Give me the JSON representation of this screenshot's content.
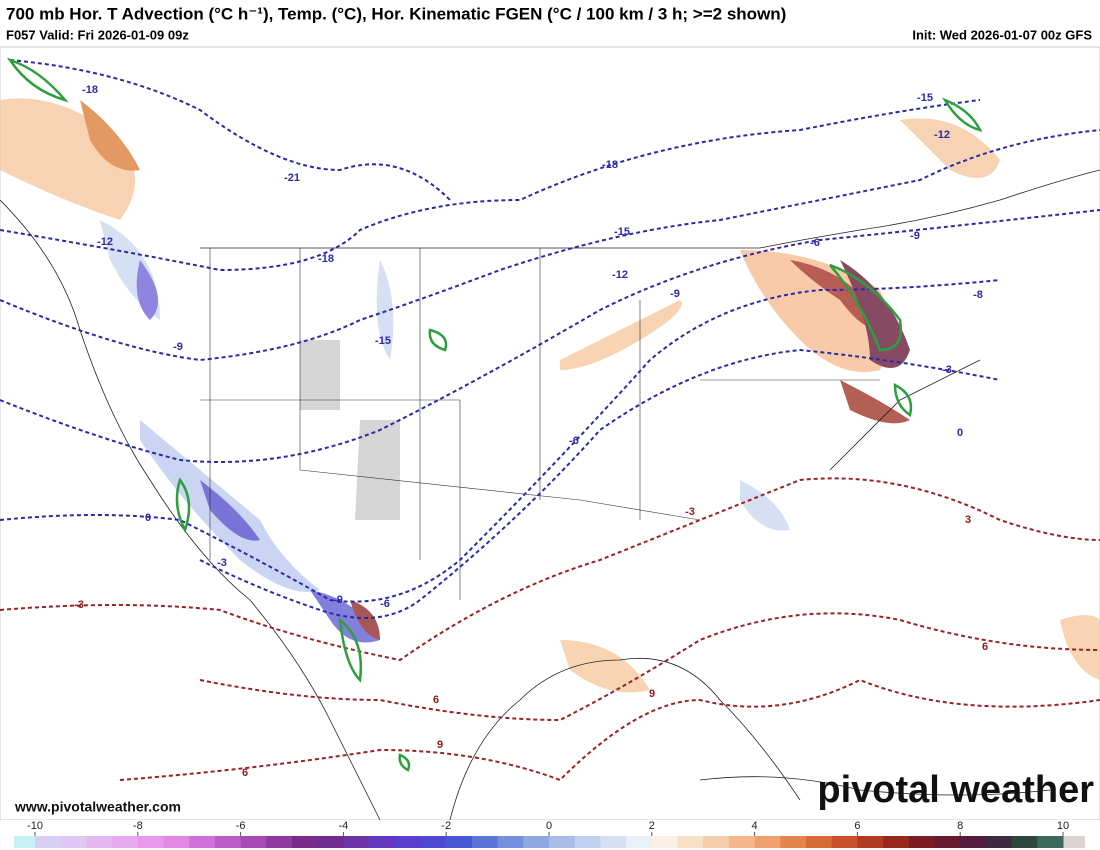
{
  "header": {
    "title": "700 mb Hor. T Advection (°C h⁻¹), Temp. (°C), Hor. Kinematic FGEN (°C / 100 km / 3 h; >=2 shown)",
    "valid": "F057 Valid: Fri 2026-01-09 09z",
    "init": "Init: Wed 2026-01-07 00z GFS"
  },
  "map": {
    "contour_labels": [
      -18,
      -21,
      -18,
      -12,
      -9,
      -15,
      -18,
      -15,
      -12,
      -9,
      -6,
      -9,
      -8,
      -15,
      -12,
      -6,
      0,
      -3,
      -9,
      -6,
      -3,
      0,
      -3,
      -3,
      3,
      6,
      9,
      6,
      9,
      6
    ]
  },
  "footer": {
    "website": "www.pivotalweather.com",
    "brand": "pivotal weather"
  },
  "colorbar": {
    "lim": [
      -10,
      10
    ],
    "ticks": [
      -10,
      -8,
      -6,
      -4,
      -2,
      0,
      2,
      4,
      6,
      8,
      10
    ],
    "colors": [
      "#d8d0f4",
      "#dcc8f2",
      "#e2b8f0",
      "#e6a8ee",
      "#e898ea",
      "#e088e4",
      "#d070d8",
      "#bc5cc8",
      "#a84ab4",
      "#8e3a9e",
      "#7a2c88",
      "#702c90",
      "#6a34a8",
      "#6238c0",
      "#5840cc",
      "#4e48d2",
      "#4658d4",
      "#5a74d8",
      "#7490dc",
      "#90a8e2",
      "#a8bce8",
      "#c0d0ee",
      "#d6e0f4",
      "#eaf0f8",
      "#fbf0e6",
      "#f8e0c8",
      "#f6ccaa",
      "#f4b88c",
      "#f0a06e",
      "#e68450",
      "#d86a36",
      "#c8502a",
      "#b03a22",
      "#96281e",
      "#7c1c22",
      "#661a30",
      "#521c3c",
      "#3e2a3e",
      "#2e4640",
      "#3c6a5a"
    ]
  }
}
